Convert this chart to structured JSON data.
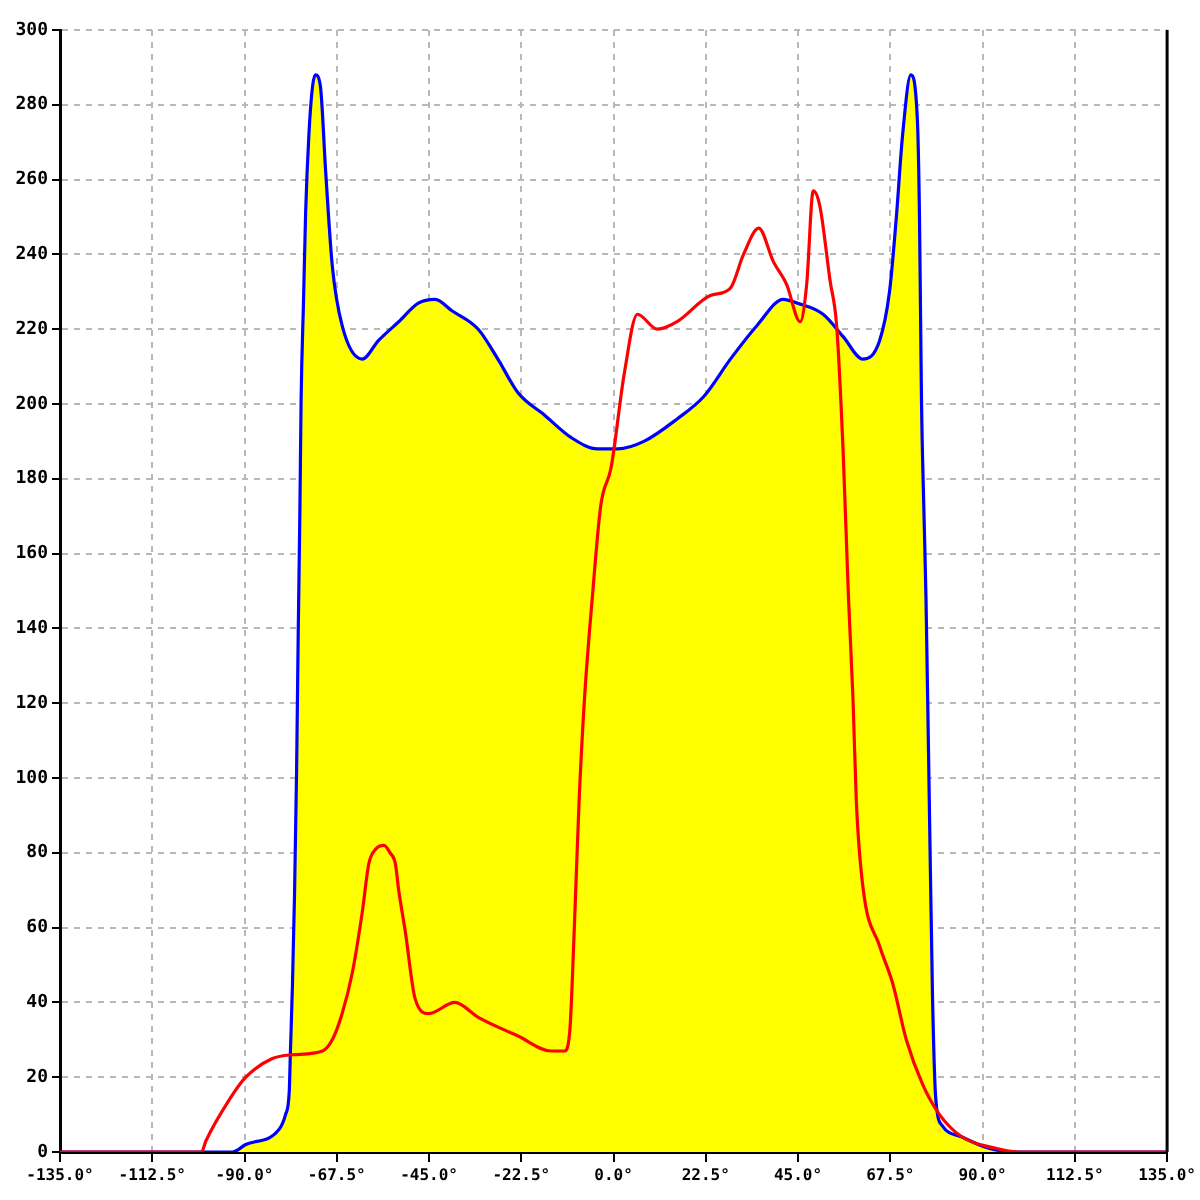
{
  "chart_data": {
    "type": "area",
    "series": [
      {
        "type": "area",
        "color": "#ffff00",
        "x": [
          -135,
          -100,
          -92.9,
          -89.7,
          -81.6,
          -80,
          -79.1,
          -78.8,
          -78.3,
          -77.8,
          -77.3,
          -76.9,
          -76.5,
          -76.2,
          -75.6,
          -75.1,
          -74.3,
          -73.4,
          -72.7,
          -71.5,
          -70.2,
          -68.6,
          -66.2,
          -61.3,
          -57.3,
          -52.4,
          -47.6,
          -43.5,
          -39.5,
          -33,
          -28.2,
          -23.3,
          -16.8,
          -10.3,
          -3.9,
          1,
          7.4,
          15.5,
          22,
          28.5,
          35,
          41.4,
          44.7,
          51.1,
          56,
          60.8,
          64.9,
          67.3,
          68.9,
          70.5,
          72.5,
          74.1,
          74.6,
          75.1,
          75.7,
          76.2,
          77,
          77.8,
          78.6,
          80.2,
          85,
          91.5,
          98,
          135
        ],
        "values": [
          0,
          0,
          0,
          2,
          6,
          10,
          16,
          27,
          45,
          69,
          102,
          139,
          171,
          201,
          228,
          251,
          272,
          285,
          288,
          285,
          262,
          237,
          221,
          212,
          217,
          222,
          227,
          228,
          225,
          220,
          212,
          203,
          197,
          191,
          188,
          188,
          190,
          196,
          202,
          212,
          221,
          228,
          227,
          224,
          218,
          212,
          217,
          230,
          249,
          272,
          288,
          276,
          251,
          201,
          171,
          148,
          94,
          41,
          14,
          7,
          4,
          1,
          0,
          0
        ]
      },
      {
        "type": "line",
        "color": "#ff0000",
        "x": [
          -135,
          -100.5,
          -99.4,
          -93.7,
          -89.7,
          -83.2,
          -78.3,
          -71,
          -68.6,
          -66.2,
          -63.7,
          -61.3,
          -59.7,
          -58,
          -56,
          -54.5,
          -53.2,
          -52.4,
          -50.8,
          -48.4,
          -45.1,
          -38.7,
          -33,
          -23.3,
          -15.2,
          -12,
          -10.7,
          -9.6,
          -8.4,
          -7.1,
          -5.2,
          -3.1,
          -0.6,
          2.6,
          5.8,
          10.7,
          15.5,
          23.6,
          28.5,
          31.7,
          35.4,
          39,
          42.2,
          45.5,
          47.1,
          48.7,
          50.3,
          52.8,
          54.4,
          56,
          57.3,
          58.4,
          59.2,
          60.8,
          64.9,
          68.1,
          71.4,
          75.4,
          79.5,
          85,
          93.2,
          98.9,
          135
        ],
        "values": [
          0,
          0,
          3,
          14,
          20,
          25,
          26,
          27,
          30,
          37,
          48,
          64,
          77,
          81,
          82,
          80,
          77,
          70,
          59,
          41,
          37,
          40,
          36,
          31,
          27,
          27,
          32,
          59,
          94,
          121,
          148,
          173,
          183,
          208,
          224,
          220,
          222,
          229,
          231,
          240,
          247,
          238,
          232,
          222,
          232,
          257,
          253,
          233,
          221,
          187,
          148,
          121,
          94,
          71,
          55,
          45,
          30,
          18,
          10,
          4,
          1,
          0,
          0
        ]
      }
    ],
    "xlim": [
      -135,
      135
    ],
    "ylim": [
      0,
      300
    ],
    "xticks": [
      {
        "value": -135,
        "label": "-135.0°"
      },
      {
        "value": -112.5,
        "label": "-112.5°"
      },
      {
        "value": -90,
        "label": "-90.0°"
      },
      {
        "value": -67.5,
        "label": "-67.5°"
      },
      {
        "value": -45,
        "label": "-45.0°"
      },
      {
        "value": -22.5,
        "label": "-22.5°"
      },
      {
        "value": 0,
        "label": "0.0°"
      },
      {
        "value": 22.5,
        "label": "22.5°"
      },
      {
        "value": 45,
        "label": "45.0°"
      },
      {
        "value": 67.5,
        "label": "67.5°"
      },
      {
        "value": 90,
        "label": "90.0°"
      },
      {
        "value": 112.5,
        "label": "112.5°"
      },
      {
        "value": 135,
        "label": "135.0°"
      }
    ],
    "yticks": [
      0,
      20,
      40,
      60,
      80,
      100,
      120,
      140,
      160,
      180,
      200,
      220,
      240,
      260,
      280,
      300
    ],
    "grid": true,
    "legend": false,
    "marker": "none",
    "line_style": "solid"
  }
}
